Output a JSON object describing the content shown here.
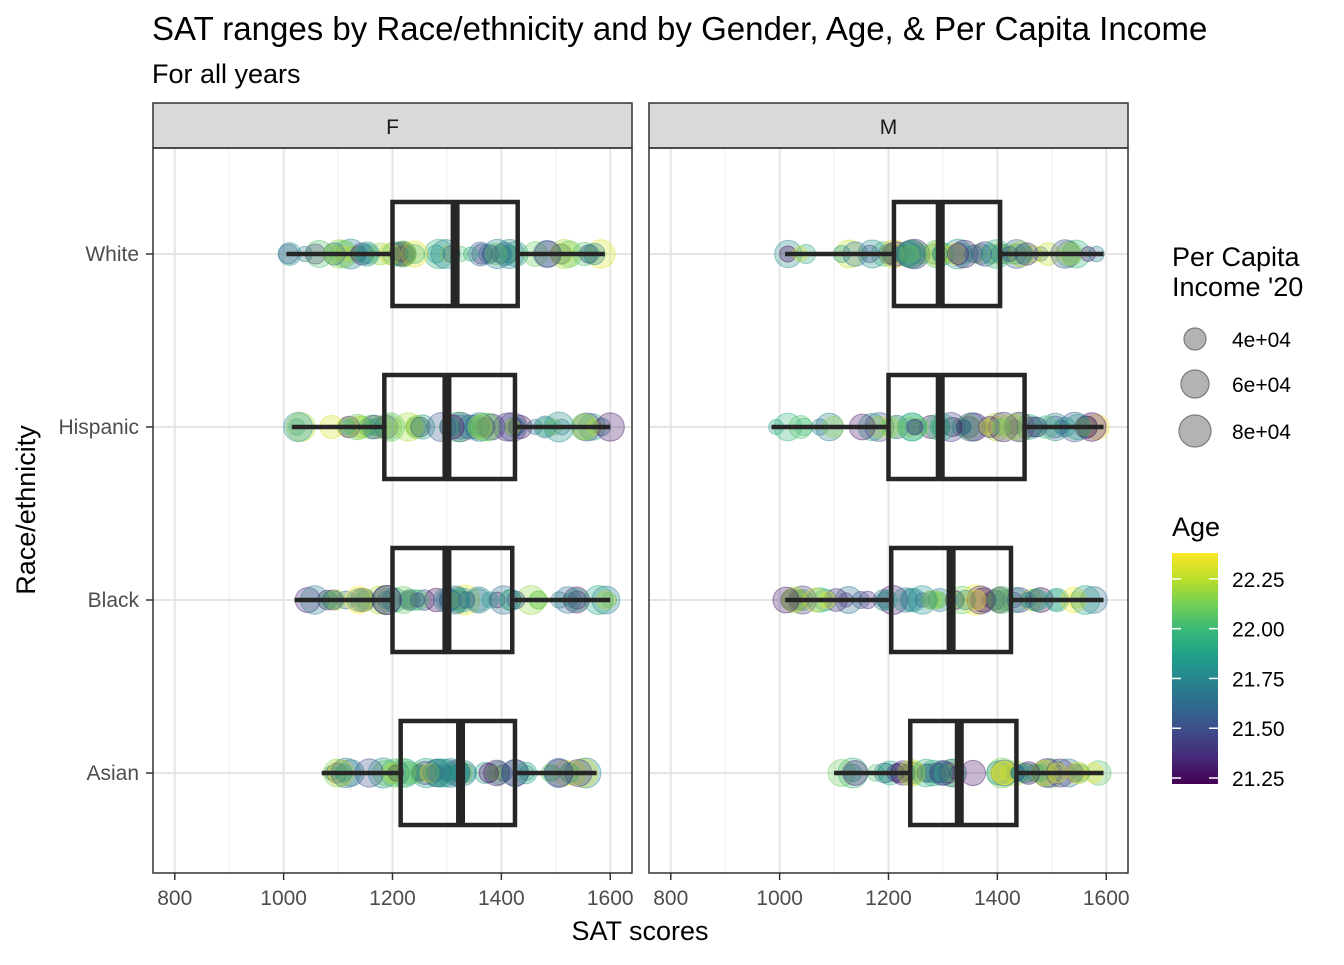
{
  "chart_data": {
    "type": "boxplot-jitter",
    "title": "SAT ranges by Race/ethnicity and by Gender, Age, & Per Capita Income",
    "subtitle": "For all years",
    "xlabel": "SAT scores",
    "ylabel": "Race/ethnicity",
    "xlim": [
      760,
      1640
    ],
    "x_ticks": [
      800,
      1000,
      1200,
      1400,
      1600
    ],
    "categories": [
      "White",
      "Hispanic",
      "Black",
      "Asian"
    ],
    "facets": [
      {
        "name": "F",
        "boxes": [
          {
            "category": "White",
            "min": 1005,
            "q1": 1200,
            "median": 1315,
            "q3": 1430,
            "max": 1590
          },
          {
            "category": "Hispanic",
            "min": 1015,
            "q1": 1185,
            "median": 1300,
            "q3": 1425,
            "max": 1600
          },
          {
            "category": "Black",
            "min": 1020,
            "q1": 1200,
            "median": 1300,
            "q3": 1420,
            "max": 1600
          },
          {
            "category": "Asian",
            "min": 1070,
            "q1": 1215,
            "median": 1325,
            "q3": 1425,
            "max": 1575
          }
        ]
      },
      {
        "name": "M",
        "boxes": [
          {
            "category": "White",
            "min": 1010,
            "q1": 1210,
            "median": 1295,
            "q3": 1405,
            "max": 1595
          },
          {
            "category": "Hispanic",
            "min": 985,
            "q1": 1200,
            "median": 1295,
            "q3": 1450,
            "max": 1595
          },
          {
            "category": "Black",
            "min": 1010,
            "q1": 1205,
            "median": 1315,
            "q3": 1425,
            "max": 1595
          },
          {
            "category": "Asian",
            "min": 1100,
            "q1": 1240,
            "median": 1330,
            "q3": 1435,
            "max": 1595
          }
        ]
      }
    ],
    "size_legend": {
      "title_lines": [
        "Per Capita",
        "Income '20"
      ],
      "labels": [
        "4e+04",
        "6e+04",
        "8e+04"
      ],
      "values": [
        40000,
        60000,
        80000
      ]
    },
    "color_legend": {
      "title": "Age",
      "labels": [
        "22.25",
        "22.00",
        "21.75",
        "21.50",
        "21.25"
      ],
      "values": [
        22.25,
        22.0,
        21.75,
        21.5,
        21.25
      ],
      "range": [
        21.22,
        22.38
      ],
      "palette": [
        "#440154",
        "#482878",
        "#3e4989",
        "#31688e",
        "#26828e",
        "#1f9e89",
        "#35b779",
        "#6ece58",
        "#b5de2b",
        "#fde725"
      ]
    },
    "grid": true,
    "legend_position": "right"
  }
}
